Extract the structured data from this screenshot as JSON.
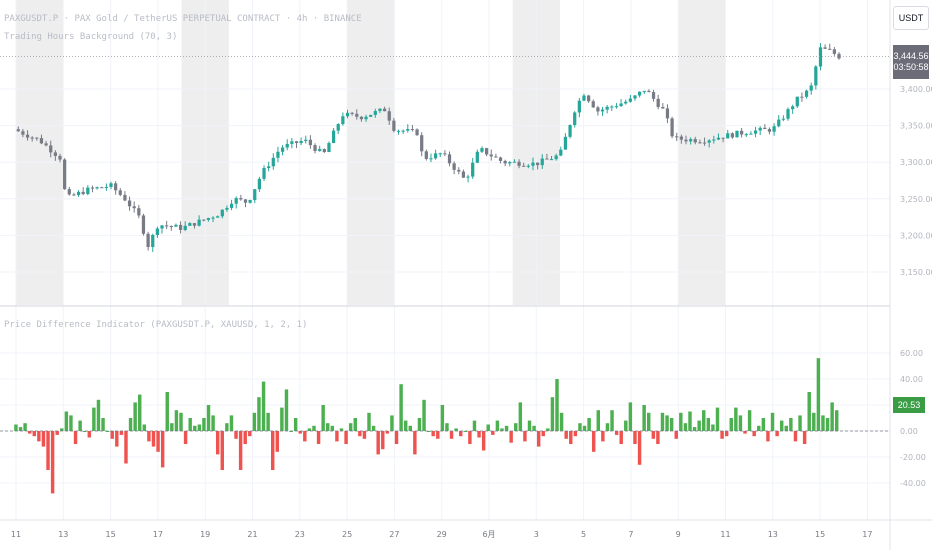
{
  "header": {
    "symbol_line": "PAXGUSDT.P · PAX Gold / TetherUS PERPETUAL CONTRACT · 4h · BINANCE",
    "study_line": "Trading Hours Background (70, 3)",
    "indicator_line": "Price Difference Indicator (PAXGUSDT.P, XAUUSD, 1, 2, 1)"
  },
  "currency_button": "USDT",
  "last_price": {
    "value": "3,444.56",
    "countdown": "03:50:58"
  },
  "indicator_value": "20.53",
  "colors": {
    "up": "#26a69a",
    "down": "#787b86",
    "hist_pos": "#4caf50",
    "hist_neg": "#ef5350",
    "session_bg": "#eeeeee",
    "grid": "#f0f3fa"
  },
  "chart_data": [
    {
      "type": "candlestick",
      "y_ticks": [
        "3,150.00",
        "3,200.00",
        "3,250.00",
        "3,300.00",
        "3,350.00",
        "3,400.00"
      ],
      "ylim": [
        3130,
        3490
      ],
      "x_tick_labels": [
        "11",
        "13",
        "15",
        "17",
        "19",
        "21",
        "23",
        "25",
        "27",
        "29",
        "6月",
        "3",
        "5",
        "7",
        "9",
        "11",
        "13",
        "15",
        "17"
      ],
      "session_shading": [
        [
          0,
          1
        ],
        [
          3.5,
          4.5
        ],
        [
          7,
          8
        ],
        [
          10.5,
          11.5
        ],
        [
          14,
          15
        ]
      ],
      "path": [
        [
          -0.05,
          3345
        ],
        [
          0.5,
          3330
        ],
        [
          0.95,
          3305
        ],
        [
          1.05,
          3250
        ],
        [
          1.5,
          3262
        ],
        [
          2.0,
          3268
        ],
        [
          2.3,
          3250
        ],
        [
          2.6,
          3225
        ],
        [
          2.8,
          3185
        ],
        [
          3.0,
          3215
        ],
        [
          3.5,
          3210
        ],
        [
          4.0,
          3222
        ],
        [
          4.3,
          3230
        ],
        [
          4.6,
          3250
        ],
        [
          4.9,
          3245
        ],
        [
          5.2,
          3285
        ],
        [
          5.6,
          3320
        ],
        [
          6.1,
          3330
        ],
        [
          6.5,
          3310
        ],
        [
          6.9,
          3365
        ],
        [
          7.3,
          3362
        ],
        [
          7.8,
          3372
        ],
        [
          8.0,
          3345
        ],
        [
          8.5,
          3340
        ],
        [
          8.6,
          3305
        ],
        [
          9.0,
          3312
        ],
        [
          9.5,
          3275
        ],
        [
          9.8,
          3318
        ],
        [
          10.3,
          3300
        ],
        [
          11.0,
          3298
        ],
        [
          11.5,
          3310
        ],
        [
          11.8,
          3370
        ],
        [
          12.0,
          3395
        ],
        [
          12.3,
          3370
        ],
        [
          13.0,
          3385
        ],
        [
          13.3,
          3400
        ],
        [
          13.7,
          3370
        ],
        [
          13.9,
          3332
        ],
        [
          14.5,
          3330
        ],
        [
          15.5,
          3342
        ],
        [
          16.0,
          3345
        ],
        [
          16.2,
          3360
        ],
        [
          16.5,
          3385
        ],
        [
          16.8,
          3400
        ],
        [
          17.0,
          3455
        ],
        [
          17.2,
          3452
        ],
        [
          17.4,
          3444.56
        ]
      ]
    },
    {
      "type": "bar",
      "y_ticks": [
        "60.00",
        "40.00",
        "20.00",
        "0.00",
        "-20.00",
        "-40.00"
      ],
      "ylim": [
        -48,
        70
      ],
      "x_range": [
        -0.05,
        17.4
      ],
      "values": [
        5,
        3,
        6,
        -2,
        -4,
        -8,
        -12,
        -30,
        -48,
        -3,
        2,
        15,
        12,
        -10,
        8,
        0,
        -5,
        18,
        24,
        10,
        0,
        -6,
        -12,
        -3,
        -25,
        10,
        22,
        28,
        5,
        -8,
        -12,
        -16,
        -28,
        30,
        6,
        16,
        14,
        -10,
        10,
        4,
        5,
        10,
        20,
        12,
        -18,
        -30,
        6,
        12,
        -6,
        -30,
        -10,
        -4,
        14,
        26,
        38,
        14,
        -30,
        -16,
        18,
        32,
        0,
        10,
        -2,
        -8,
        2,
        4,
        -10,
        20,
        6,
        4,
        -8,
        2,
        -10,
        6,
        10,
        -4,
        -6,
        14,
        4,
        -18,
        -14,
        -2,
        12,
        -10,
        36,
        8,
        4,
        -18,
        10,
        24,
        0,
        -4,
        -6,
        20,
        6,
        -6,
        2,
        -4,
        0,
        -10,
        8,
        -5,
        -15,
        5,
        -3,
        8,
        2,
        4,
        -9,
        6,
        22,
        -8,
        8,
        4,
        -12,
        -4,
        2,
        26,
        40,
        14,
        -6,
        -10,
        -4,
        6,
        4,
        10,
        -16,
        16,
        -8,
        6,
        16,
        -3,
        -10,
        8,
        22,
        -10,
        -26,
        20,
        14,
        -6,
        -10,
        14,
        12,
        10,
        -6,
        14,
        6,
        15,
        3,
        8,
        16,
        10,
        5,
        18,
        -6,
        -4,
        10,
        18,
        12,
        -2,
        16,
        -4,
        4,
        10,
        -8,
        14,
        -4,
        8,
        4,
        10,
        -8,
        12,
        -10,
        30,
        14,
        56,
        12,
        10,
        22,
        16
      ]
    }
  ]
}
